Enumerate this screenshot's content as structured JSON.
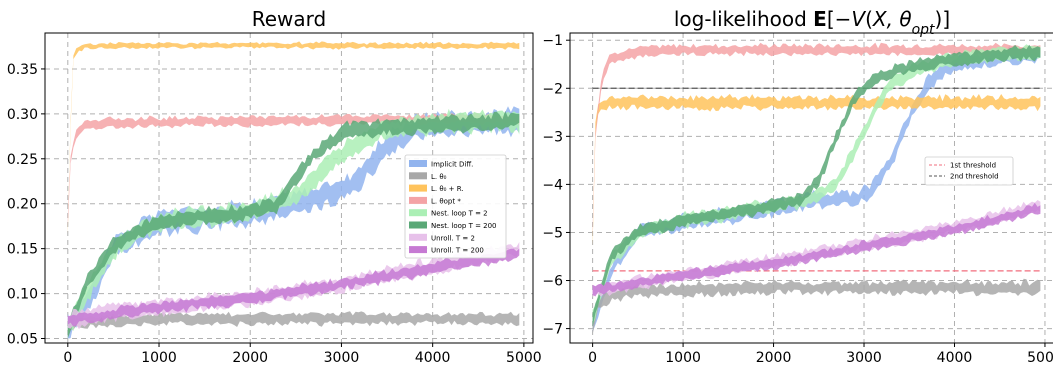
{
  "chart_data": [
    {
      "type": "area",
      "title": "Reward",
      "xlim": [
        -250,
        5100
      ],
      "ylim": [
        0.045,
        0.39
      ],
      "xticks": [
        0,
        1000,
        2000,
        3000,
        4000,
        5000
      ],
      "yticks": [
        0.05,
        0.1,
        0.15,
        0.2,
        0.25,
        0.3,
        0.35
      ],
      "xtick_labels": [
        "0",
        "1000",
        "2000",
        "3000",
        "4000",
        "5000"
      ],
      "ytick_labels": [
        "0.05",
        "0.10",
        "0.15",
        "0.20",
        "0.25",
        "0.30",
        "0.35"
      ],
      "grid": true,
      "legend": {
        "placement": "center-right",
        "entries": [
          {
            "label": "Implicit Diff.",
            "color": "#92b4ee"
          },
          {
            "label": "L. θ₀",
            "color": "#a8a8a8"
          },
          {
            "label": "L. θ₀ + R.",
            "color": "#ffc35c"
          },
          {
            "label": "L. θopt *",
            "color": "#f4a3a6"
          },
          {
            "label": "Nest. loop T = 2",
            "color": "#abefb5"
          },
          {
            "label": "Nest. loop T = 200",
            "color": "#5aa877"
          },
          {
            "label": "Unroll. T = 2",
            "color": "#e7c1ea"
          },
          {
            "label": "Unroll. T = 200",
            "color": "#c67ad3"
          }
        ]
      },
      "series": [
        {
          "name": "Implicit Diff.",
          "color": "#92b4ee",
          "points": [
            [
              0,
              0.06
            ],
            [
              200,
              0.09
            ],
            [
              500,
              0.15
            ],
            [
              1000,
              0.18
            ],
            [
              1500,
              0.185
            ],
            [
              2000,
              0.19
            ],
            [
              2500,
              0.2
            ],
            [
              3000,
              0.215
            ],
            [
              3200,
              0.23
            ],
            [
              3500,
              0.265
            ],
            [
              3800,
              0.285
            ],
            [
              4000,
              0.288
            ],
            [
              4500,
              0.29
            ],
            [
              4950,
              0.292
            ]
          ],
          "spread": 0.012
        },
        {
          "name": "L. θ₀",
          "color": "#a8a8a8",
          "points": [
            [
              0,
              0.06
            ],
            [
              100,
              0.068
            ],
            [
              500,
              0.07
            ],
            [
              1000,
              0.072
            ],
            [
              2000,
              0.072
            ],
            [
              3000,
              0.072
            ],
            [
              4000,
              0.072
            ],
            [
              4950,
              0.072
            ]
          ],
          "spread": 0.006
        },
        {
          "name": "L. θ₀ + R.",
          "color": "#ffc35c",
          "points": [
            [
              0,
              0.17
            ],
            [
              20,
              0.25
            ],
            [
              50,
              0.36
            ],
            [
              100,
              0.372
            ],
            [
              200,
              0.375
            ],
            [
              500,
              0.376
            ],
            [
              1000,
              0.376
            ],
            [
              2000,
              0.376
            ],
            [
              3000,
              0.376
            ],
            [
              4000,
              0.376
            ],
            [
              4950,
              0.376
            ]
          ],
          "spread": 0.003
        },
        {
          "name": "L. θopt *",
          "color": "#f4a3a6",
          "points": [
            [
              0,
              0.18
            ],
            [
              30,
              0.25
            ],
            [
              100,
              0.28
            ],
            [
              200,
              0.288
            ],
            [
              400,
              0.29
            ],
            [
              1000,
              0.291
            ],
            [
              2000,
              0.292
            ],
            [
              3000,
              0.293
            ],
            [
              4000,
              0.294
            ],
            [
              4950,
              0.294
            ]
          ],
          "spread": 0.005
        },
        {
          "name": "Nest. loop T = 2",
          "color": "#abefb5",
          "points": [
            [
              0,
              0.06
            ],
            [
              200,
              0.1
            ],
            [
              500,
              0.15
            ],
            [
              1000,
              0.18
            ],
            [
              1500,
              0.186
            ],
            [
              2000,
              0.19
            ],
            [
              2500,
              0.21
            ],
            [
              2800,
              0.235
            ],
            [
              3000,
              0.255
            ],
            [
              3200,
              0.27
            ],
            [
              3500,
              0.285
            ],
            [
              4000,
              0.29
            ],
            [
              4500,
              0.291
            ],
            [
              4950,
              0.292
            ]
          ],
          "spread": 0.01
        },
        {
          "name": "Nest. loop T = 200",
          "color": "#5aa877",
          "points": [
            [
              0,
              0.06
            ],
            [
              200,
              0.11
            ],
            [
              500,
              0.155
            ],
            [
              1000,
              0.18
            ],
            [
              1500,
              0.186
            ],
            [
              2000,
              0.19
            ],
            [
              2300,
              0.2
            ],
            [
              2500,
              0.23
            ],
            [
              2700,
              0.255
            ],
            [
              2900,
              0.27
            ],
            [
              3000,
              0.28
            ],
            [
              3500,
              0.285
            ],
            [
              4000,
              0.288
            ],
            [
              4500,
              0.29
            ],
            [
              4950,
              0.292
            ]
          ],
          "spread": 0.008
        },
        {
          "name": "Unroll. T = 2",
          "color": "#e7c1ea",
          "points": [
            [
              0,
              0.07
            ],
            [
              500,
              0.08
            ],
            [
              1000,
              0.085
            ],
            [
              2000,
              0.095
            ],
            [
              3000,
              0.11
            ],
            [
              4000,
              0.13
            ],
            [
              4950,
              0.15
            ]
          ],
          "spread": 0.008
        },
        {
          "name": "Unroll. T = 200",
          "color": "#c67ad3",
          "points": [
            [
              0,
              0.07
            ],
            [
              500,
              0.078
            ],
            [
              1000,
              0.085
            ],
            [
              2000,
              0.095
            ],
            [
              3000,
              0.11
            ],
            [
              4000,
              0.128
            ],
            [
              4950,
              0.145
            ]
          ],
          "spread": 0.006
        }
      ]
    },
    {
      "type": "area",
      "title_parts": [
        {
          "text": "log-likelihood ",
          "weight": "normal",
          "style": "normal"
        },
        {
          "text": "E",
          "weight": "bold",
          "style": "normal"
        },
        {
          "text": "[−",
          "weight": "normal",
          "style": "normal"
        },
        {
          "text": "V",
          "weight": "normal",
          "style": "italic"
        },
        {
          "text": "(",
          "weight": "normal",
          "style": "normal"
        },
        {
          "text": "X",
          "weight": "normal",
          "style": "italic"
        },
        {
          "text": ", θ",
          "weight": "normal",
          "style": "italic"
        },
        {
          "text": "opt",
          "weight": "normal",
          "style": "italic",
          "sub": true
        },
        {
          "text": ")]",
          "weight": "normal",
          "style": "normal"
        }
      ],
      "xlim": [
        -250,
        5100
      ],
      "ylim": [
        -7.3,
        -0.85
      ],
      "xticks": [
        0,
        1000,
        2000,
        3000,
        4000,
        5000
      ],
      "yticks": [
        -7,
        -6,
        -5,
        -4,
        -3,
        -2,
        -1
      ],
      "xtick_labels": [
        "0",
        "1000",
        "2000",
        "3000",
        "4000",
        "5000"
      ],
      "ytick_labels": [
        "−7",
        "−6",
        "−5",
        "−4",
        "−3",
        "−2",
        "−1"
      ],
      "grid": true,
      "thresholds": [
        {
          "label": "1st threshold",
          "y": -5.8,
          "color": "#f26d7d"
        },
        {
          "label": "2nd threshold",
          "y": -2.0,
          "color": "#555555"
        }
      ],
      "legend": {
        "placement": "center-right"
      },
      "series": [
        {
          "name": "Implicit Diff.",
          "color": "#92b4ee",
          "points": [
            [
              0,
              -7.0
            ],
            [
              200,
              -5.8
            ],
            [
              500,
              -5.0
            ],
            [
              1000,
              -4.8
            ],
            [
              1500,
              -4.65
            ],
            [
              2000,
              -4.5
            ],
            [
              2500,
              -4.3
            ],
            [
              2900,
              -4.3
            ],
            [
              3100,
              -4.1
            ],
            [
              3300,
              -3.5
            ],
            [
              3500,
              -2.6
            ],
            [
              3700,
              -1.9
            ],
            [
              4000,
              -1.5
            ],
            [
              4500,
              -1.35
            ],
            [
              4950,
              -1.3
            ]
          ],
          "spread": 0.15
        },
        {
          "name": "L. θ₀",
          "color": "#a8a8a8",
          "points": [
            [
              0,
              -7.0
            ],
            [
              50,
              -6.5
            ],
            [
              200,
              -6.3
            ],
            [
              500,
              -6.2
            ],
            [
              1000,
              -6.2
            ],
            [
              2000,
              -6.15
            ],
            [
              3000,
              -6.15
            ],
            [
              4000,
              -6.15
            ],
            [
              4950,
              -6.15
            ]
          ],
          "spread": 0.12
        },
        {
          "name": "L. θ₀ + R.",
          "color": "#ffc35c",
          "points": [
            [
              0,
              -5.2
            ],
            [
              20,
              -3.0
            ],
            [
              60,
              -2.4
            ],
            [
              200,
              -2.3
            ],
            [
              1000,
              -2.3
            ],
            [
              2000,
              -2.3
            ],
            [
              3000,
              -2.3
            ],
            [
              4000,
              -2.3
            ],
            [
              4950,
              -2.3
            ]
          ],
          "spread": 0.12
        },
        {
          "name": "L. θopt *",
          "color": "#f4a3a6",
          "points": [
            [
              0,
              -5.0
            ],
            [
              30,
              -3.0
            ],
            [
              100,
              -1.8
            ],
            [
              200,
              -1.35
            ],
            [
              500,
              -1.25
            ],
            [
              1000,
              -1.2
            ],
            [
              2000,
              -1.2
            ],
            [
              3000,
              -1.2
            ],
            [
              4000,
              -1.2
            ],
            [
              4950,
              -1.2
            ]
          ],
          "spread": 0.1
        },
        {
          "name": "Nest. loop T = 2",
          "color": "#abefb5",
          "points": [
            [
              0,
              -6.8
            ],
            [
              200,
              -5.6
            ],
            [
              500,
              -5.0
            ],
            [
              1000,
              -4.75
            ],
            [
              1500,
              -4.6
            ],
            [
              2000,
              -4.45
            ],
            [
              2400,
              -4.3
            ],
            [
              2700,
              -4.0
            ],
            [
              2900,
              -3.3
            ],
            [
              3100,
              -2.5
            ],
            [
              3300,
              -1.9
            ],
            [
              3600,
              -1.6
            ],
            [
              4000,
              -1.4
            ],
            [
              4500,
              -1.3
            ],
            [
              4950,
              -1.25
            ]
          ],
          "spread": 0.13
        },
        {
          "name": "Nest. loop T = 200",
          "color": "#5aa877",
          "points": [
            [
              0,
              -6.8
            ],
            [
              200,
              -5.5
            ],
            [
              500,
              -5.0
            ],
            [
              1000,
              -4.75
            ],
            [
              1500,
              -4.6
            ],
            [
              2000,
              -4.45
            ],
            [
              2300,
              -4.3
            ],
            [
              2500,
              -3.9
            ],
            [
              2700,
              -3.0
            ],
            [
              2900,
              -2.2
            ],
            [
              3100,
              -1.8
            ],
            [
              3500,
              -1.55
            ],
            [
              4000,
              -1.4
            ],
            [
              4500,
              -1.3
            ],
            [
              4950,
              -1.25
            ]
          ],
          "spread": 0.12
        },
        {
          "name": "Unroll. T = 2",
          "color": "#e7c1ea",
          "points": [
            [
              0,
              -6.2
            ],
            [
              500,
              -6.05
            ],
            [
              1000,
              -5.9
            ],
            [
              2000,
              -5.6
            ],
            [
              3000,
              -5.25
            ],
            [
              4000,
              -4.9
            ],
            [
              4950,
              -4.45
            ]
          ],
          "spread": 0.12
        },
        {
          "name": "Unroll. T = 200",
          "color": "#c67ad3",
          "points": [
            [
              0,
              -6.2
            ],
            [
              500,
              -6.05
            ],
            [
              1000,
              -5.9
            ],
            [
              2000,
              -5.65
            ],
            [
              3000,
              -5.3
            ],
            [
              4000,
              -4.95
            ],
            [
              4950,
              -4.5
            ]
          ],
          "spread": 0.1
        }
      ]
    }
  ]
}
